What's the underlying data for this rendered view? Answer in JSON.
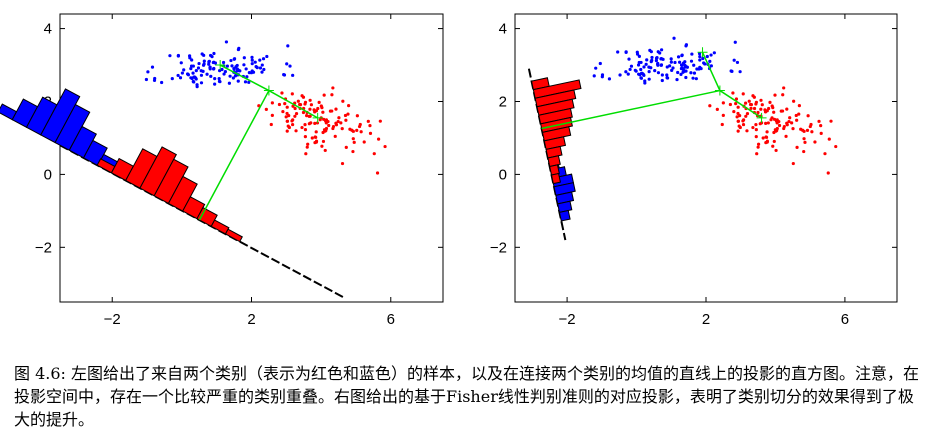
{
  "colors": {
    "red": "#ff0000",
    "blue": "#0000ff",
    "green": "#00dd00",
    "black": "#000000"
  },
  "chart_data": [
    {
      "type": "scatter",
      "panel": "left",
      "title": "",
      "xlabel": "",
      "ylabel": "",
      "xlim": [
        -3.5,
        7.5
      ],
      "ylim": [
        -3.5,
        4.4
      ],
      "xticks": [
        -2,
        2,
        6
      ],
      "yticks": [
        4,
        2,
        0,
        -2
      ],
      "xtick_labels": [
        "−2",
        "2",
        "6"
      ],
      "ytick_labels": [
        "4",
        "2",
        "0",
        "−2"
      ],
      "series": [
        {
          "color": "blue",
          "center": [
            1.1,
            2.9
          ],
          "spread": [
            1.2,
            0.38
          ],
          "count": 130,
          "seed": 11
        },
        {
          "color": "red",
          "center": [
            3.8,
            1.5
          ],
          "spread": [
            1.1,
            0.55
          ],
          "count": 130,
          "seed": 29
        }
      ],
      "means": {
        "blue": [
          1.1,
          3.0
        ],
        "red": [
          3.9,
          1.55
        ],
        "mid": [
          2.5,
          2.3
        ]
      },
      "projection_line": {
        "from": [
          -3.5,
          0.8
        ],
        "to": [
          4.7,
          -3.4
        ]
      },
      "histograms": [
        {
          "color": "blue",
          "start": -2.0,
          "bin_width": 0.46,
          "heights": [
            0.25,
            0.65,
            0.95,
            1.45,
            1.2,
            0.75,
            0.55,
            0.35,
            0.25,
            0.15
          ]
        },
        {
          "color": "red",
          "start": 1.2,
          "bin_width": 0.46,
          "heights": [
            0.2,
            0.45,
            1.0,
            1.3,
            1.15,
            0.85,
            0.45,
            0.35,
            0.2,
            0.15
          ]
        }
      ]
    },
    {
      "type": "scatter",
      "panel": "right",
      "title": "",
      "xlabel": "",
      "ylabel": "",
      "xlim": [
        -3.5,
        7.5
      ],
      "ylim": [
        -3.5,
        4.4
      ],
      "xticks": [
        -2,
        2,
        6
      ],
      "yticks": [
        4,
        2,
        0,
        -2
      ],
      "xtick_labels": [
        "−2",
        "2",
        "6"
      ],
      "ytick_labels": [
        "4",
        "2",
        "0",
        "−2"
      ],
      "series": [
        {
          "color": "blue",
          "center": [
            0.9,
            3.0
          ],
          "spread": [
            1.2,
            0.38
          ],
          "count": 130,
          "seed": 11
        },
        {
          "color": "red",
          "center": [
            3.7,
            1.5
          ],
          "spread": [
            1.1,
            0.55
          ],
          "count": 130,
          "seed": 29
        }
      ],
      "means": {
        "blue": [
          1.9,
          3.35
        ],
        "red": [
          3.6,
          1.55
        ],
        "mid": [
          2.4,
          2.3
        ]
      },
      "projection_line": {
        "from": [
          -3.1,
          2.9
        ],
        "to": [
          -2.05,
          -1.8
        ]
      },
      "histograms": [
        {
          "color": "blue",
          "start": 2.6,
          "bin_width": 0.24,
          "heights": [
            0.25,
            0.4,
            0.55,
            0.55,
            0.45,
            0.35,
            0.25
          ]
        },
        {
          "color": "red",
          "start": 0.35,
          "bin_width": 0.24,
          "heights": [
            0.45,
            1.3,
            1.1,
            1.0,
            0.9,
            0.85,
            0.75,
            0.55,
            0.4,
            0.3,
            0.22,
            0.2
          ]
        }
      ]
    }
  ],
  "caption": {
    "text": "图 4.6: 左图给出了来自两个类别（表示为红色和蓝色）的样本，以及在连接两个类别的均值的直线上的投影的直方图。注意，在投影空间中，存在一个比较严重的类别重叠。右图给出的基于Fisher线性判别准则的对应投影，表明了类别切分的效果得到了极大的提升。"
  }
}
